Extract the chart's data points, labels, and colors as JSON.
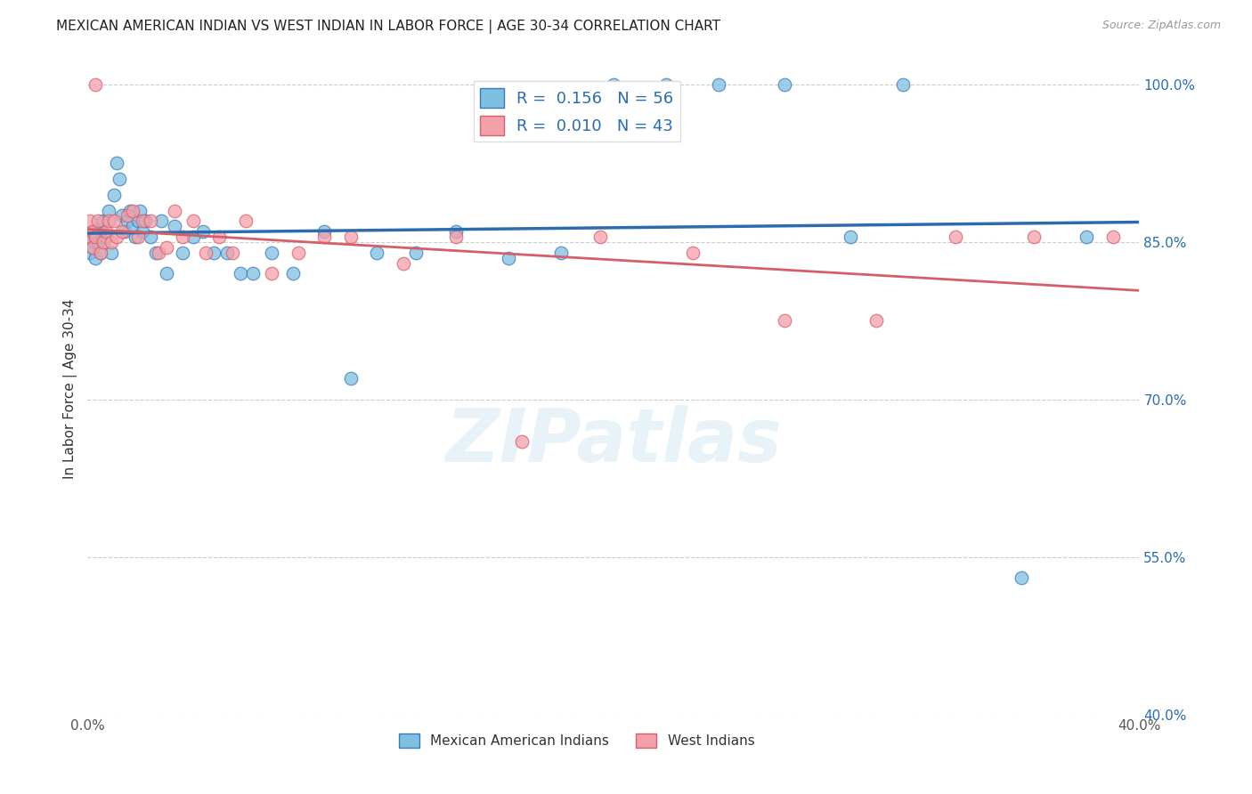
{
  "title": "MEXICAN AMERICAN INDIAN VS WEST INDIAN IN LABOR FORCE | AGE 30-34 CORRELATION CHART",
  "source": "Source: ZipAtlas.com",
  "ylabel": "In Labor Force | Age 30-34",
  "xlim": [
    0.0,
    0.4
  ],
  "ylim": [
    0.4,
    1.02
  ],
  "yticks": [
    0.4,
    0.55,
    0.7,
    0.85,
    1.0
  ],
  "xticks": [
    0.0,
    0.05,
    0.1,
    0.15,
    0.2,
    0.25,
    0.3,
    0.35,
    0.4
  ],
  "xtick_labels": [
    "0.0%",
    "",
    "",
    "",
    "",
    "",
    "",
    "",
    "40.0%"
  ],
  "ytick_labels": [
    "40.0%",
    "55.0%",
    "70.0%",
    "85.0%",
    "100.0%"
  ],
  "blue_color": "#7fbfdf",
  "pink_color": "#f4a0a8",
  "blue_edge_color": "#3a7abf",
  "pink_edge_color": "#d95f6e",
  "blue_line_color": "#2b6cb0",
  "pink_line_color": "#d45f6a",
  "R_blue": 0.156,
  "N_blue": 56,
  "R_pink": 0.01,
  "N_pink": 43,
  "legend_label_blue": "Mexican American Indians",
  "legend_label_pink": "West Indians",
  "watermark": "ZIPatlas",
  "blue_scatter_x": [
    0.001,
    0.001,
    0.002,
    0.002,
    0.003,
    0.003,
    0.004,
    0.004,
    0.005,
    0.005,
    0.006,
    0.007,
    0.008,
    0.009,
    0.01,
    0.011,
    0.012,
    0.013,
    0.014,
    0.015,
    0.016,
    0.017,
    0.018,
    0.019,
    0.02,
    0.021,
    0.022,
    0.024,
    0.026,
    0.028,
    0.03,
    0.033,
    0.036,
    0.04,
    0.044,
    0.048,
    0.053,
    0.058,
    0.063,
    0.07,
    0.078,
    0.09,
    0.1,
    0.11,
    0.125,
    0.14,
    0.16,
    0.18,
    0.2,
    0.22,
    0.24,
    0.265,
    0.29,
    0.31,
    0.355,
    0.38
  ],
  "blue_scatter_y": [
    0.855,
    0.84,
    0.86,
    0.845,
    0.85,
    0.835,
    0.85,
    0.858,
    0.862,
    0.84,
    0.87,
    0.855,
    0.88,
    0.84,
    0.895,
    0.925,
    0.91,
    0.875,
    0.86,
    0.87,
    0.88,
    0.865,
    0.855,
    0.87,
    0.88,
    0.86,
    0.87,
    0.855,
    0.84,
    0.87,
    0.82,
    0.865,
    0.84,
    0.855,
    0.86,
    0.84,
    0.84,
    0.82,
    0.82,
    0.84,
    0.82,
    0.86,
    0.72,
    0.84,
    0.84,
    0.86,
    0.835,
    0.84,
    1.0,
    1.0,
    1.0,
    1.0,
    0.855,
    1.0,
    0.53,
    0.855
  ],
  "pink_scatter_x": [
    0.001,
    0.001,
    0.002,
    0.002,
    0.003,
    0.003,
    0.004,
    0.005,
    0.006,
    0.007,
    0.008,
    0.009,
    0.01,
    0.011,
    0.013,
    0.015,
    0.017,
    0.019,
    0.021,
    0.024,
    0.027,
    0.03,
    0.033,
    0.036,
    0.04,
    0.045,
    0.05,
    0.055,
    0.06,
    0.07,
    0.08,
    0.09,
    0.1,
    0.12,
    0.14,
    0.165,
    0.195,
    0.23,
    0.265,
    0.3,
    0.33,
    0.36,
    0.39
  ],
  "pink_scatter_y": [
    0.87,
    0.855,
    0.86,
    0.845,
    1.0,
    0.855,
    0.87,
    0.84,
    0.85,
    0.86,
    0.87,
    0.85,
    0.87,
    0.855,
    0.86,
    0.875,
    0.88,
    0.855,
    0.87,
    0.87,
    0.84,
    0.845,
    0.88,
    0.855,
    0.87,
    0.84,
    0.855,
    0.84,
    0.87,
    0.82,
    0.84,
    0.855,
    0.855,
    0.83,
    0.855,
    0.66,
    0.855,
    0.84,
    0.775,
    0.775,
    0.855,
    0.855,
    0.855
  ]
}
